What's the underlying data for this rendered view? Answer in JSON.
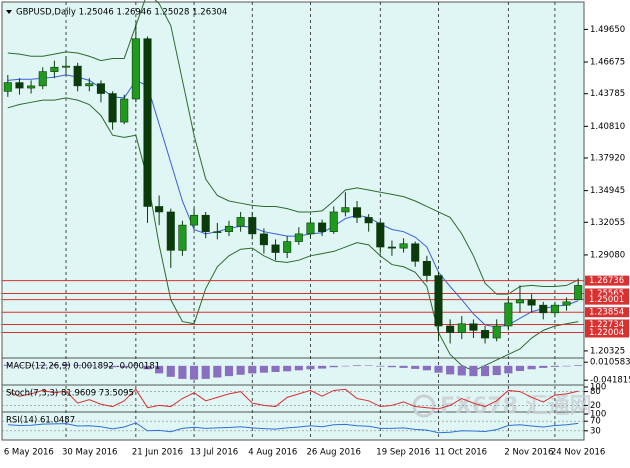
{
  "chart_data": {
    "type": "candlestick",
    "title": "GBPUSD,Daily  1.25046 1.26946 1.25028 1.26304",
    "categories": [
      "6 May 2016",
      null,
      null,
      null,
      null,
      "30 May 2016",
      null,
      null,
      null,
      null,
      null,
      "21 Jun 2016",
      null,
      null,
      null,
      null,
      "13 Jul 2016",
      null,
      null,
      null,
      null,
      "4 Aug 2016",
      null,
      null,
      null,
      null,
      "26 Aug 2016",
      null,
      null,
      null,
      null,
      null,
      "19 Sep 2016",
      null,
      null,
      null,
      null,
      "11 Oct 2016",
      null,
      null,
      null,
      null,
      null,
      "2 Nov 2016",
      null,
      null,
      null,
      "24 Nov 2016",
      null,
      null
    ],
    "open": [
      1.44,
      1.448,
      1.443,
      1.445,
      1.458,
      1.462,
      1.463,
      1.445,
      1.447,
      1.438,
      1.412,
      1.433,
      1.488,
      1.335,
      1.33,
      1.295,
      1.318,
      1.327,
      1.312,
      1.312,
      1.317,
      1.325,
      1.31,
      1.3,
      1.293,
      1.303,
      1.31,
      1.32,
      1.312,
      1.33,
      1.334,
      1.325,
      1.32,
      1.298,
      1.297,
      1.301,
      1.285,
      1.272,
      1.226,
      1.22,
      1.228,
      1.222,
      1.215,
      1.226,
      1.247,
      1.25,
      1.245,
      1.238,
      1.245,
      1.25
    ],
    "high": [
      1.455,
      1.452,
      1.45,
      1.462,
      1.468,
      1.472,
      1.466,
      1.452,
      1.45,
      1.44,
      1.437,
      1.502,
      1.49,
      1.345,
      1.333,
      1.322,
      1.334,
      1.33,
      1.32,
      1.322,
      1.33,
      1.33,
      1.315,
      1.305,
      1.308,
      1.316,
      1.325,
      1.323,
      1.335,
      1.348,
      1.34,
      1.328,
      1.322,
      1.304,
      1.306,
      1.303,
      1.29,
      1.275,
      1.232,
      1.235,
      1.232,
      1.226,
      1.232,
      1.252,
      1.263,
      1.255,
      1.248,
      1.248,
      1.252,
      1.2695
    ],
    "low": [
      1.435,
      1.437,
      1.438,
      1.442,
      1.452,
      1.455,
      1.44,
      1.44,
      1.43,
      1.405,
      1.41,
      1.43,
      1.32,
      1.318,
      1.279,
      1.29,
      1.315,
      1.306,
      1.305,
      1.308,
      1.312,
      1.305,
      1.292,
      1.286,
      1.288,
      1.3,
      1.306,
      1.308,
      1.31,
      1.326,
      1.32,
      1.312,
      1.292,
      1.29,
      1.293,
      1.28,
      1.266,
      1.212,
      1.21,
      1.214,
      1.215,
      1.21,
      1.212,
      1.222,
      1.238,
      1.238,
      1.232,
      1.234,
      1.24,
      1.2503
    ],
    "close": [
      1.448,
      1.443,
      1.445,
      1.458,
      1.462,
      1.463,
      1.445,
      1.447,
      1.438,
      1.412,
      1.433,
      1.488,
      1.335,
      1.33,
      1.295,
      1.318,
      1.327,
      1.312,
      1.312,
      1.317,
      1.325,
      1.31,
      1.3,
      1.293,
      1.303,
      1.31,
      1.32,
      1.312,
      1.33,
      1.334,
      1.325,
      1.32,
      1.298,
      1.297,
      1.301,
      1.285,
      1.272,
      1.226,
      1.22,
      1.228,
      1.222,
      1.215,
      1.226,
      1.247,
      1.25,
      1.245,
      1.238,
      1.245,
      1.248,
      1.263
    ],
    "up_color": "#1f9a1f",
    "down_color": "#0b3b0b",
    "ylim": [
      1.1977,
      1.5215
    ],
    "yticks": [
      {
        "value": 1.4965,
        "label": "1.49650"
      },
      {
        "value": 1.46675,
        "label": "1.46675"
      },
      {
        "value": 1.43785,
        "label": "1.43785"
      },
      {
        "value": 1.4081,
        "label": "1.40810"
      },
      {
        "value": 1.3792,
        "label": "1.37920"
      },
      {
        "value": 1.34945,
        "label": "1.34945"
      },
      {
        "value": 1.32055,
        "label": "1.32055"
      },
      {
        "value": 1.2908,
        "label": "1.29080"
      },
      {
        "value": 1.20325,
        "label": "1.20325"
      }
    ],
    "bands": [
      {
        "color": "#2e6b2e",
        "values": [
          1.475,
          1.474,
          1.472,
          1.472,
          1.474,
          1.476,
          1.475,
          1.472,
          1.468,
          1.47,
          1.47,
          1.5,
          1.53,
          1.52,
          1.5,
          1.45,
          1.4,
          1.36,
          1.345,
          1.34,
          1.338,
          1.336,
          1.335,
          1.335,
          1.333,
          1.33,
          1.33,
          1.331,
          1.34,
          1.35,
          1.352,
          1.35,
          1.348,
          1.346,
          1.344,
          1.34,
          1.335,
          1.33,
          1.325,
          1.31,
          1.29,
          1.265,
          1.255,
          1.255,
          1.262,
          1.263,
          1.262,
          1.262,
          1.263,
          1.268
        ]
      },
      {
        "color": "#2e6b2e",
        "values": [
          1.425,
          1.428,
          1.43,
          1.432,
          1.432,
          1.434,
          1.432,
          1.428,
          1.418,
          1.4,
          1.398,
          1.4,
          1.36,
          1.3,
          1.25,
          1.23,
          1.228,
          1.26,
          1.28,
          1.29,
          1.296,
          1.297,
          1.29,
          1.285,
          1.284,
          1.286,
          1.29,
          1.292,
          1.294,
          1.298,
          1.302,
          1.3,
          1.29,
          1.282,
          1.28,
          1.275,
          1.262,
          1.22,
          1.2,
          1.19,
          1.185,
          1.19,
          1.195,
          1.2,
          1.205,
          1.215,
          1.222,
          1.226,
          1.228,
          1.23
        ]
      },
      {
        "color": "#3b5fd9",
        "values": [
          1.45,
          1.451,
          1.451,
          1.452,
          1.453,
          1.455,
          1.453,
          1.45,
          1.443,
          1.435,
          1.434,
          1.45,
          1.445,
          1.41,
          1.375,
          1.34,
          1.314,
          1.31,
          1.312,
          1.315,
          1.317,
          1.316,
          1.312,
          1.31,
          1.308,
          1.308,
          1.31,
          1.311,
          1.317,
          1.324,
          1.327,
          1.325,
          1.319,
          1.314,
          1.312,
          1.307,
          1.298,
          1.275,
          1.262,
          1.25,
          1.237,
          1.227,
          1.225,
          1.227,
          1.233,
          1.239,
          1.242,
          1.244,
          1.245,
          1.249
        ]
      }
    ],
    "levels": [
      {
        "value": 1.26736,
        "label": "1.26736"
      },
      {
        "value": 1.25565,
        "label": "1.25565"
      },
      {
        "value": 1.25001,
        "label": "1.25001"
      },
      {
        "value": 1.23854,
        "label": "1.23854"
      },
      {
        "value": 1.22734,
        "label": "1.22734"
      },
      {
        "value": 1.22004,
        "label": "1.22004"
      }
    ],
    "level_color": "#d93030",
    "indicators": [
      {
        "type": "bar",
        "title": "MACD(12,26,9) 0.001892 -0.000181",
        "color": "#8a6fc0",
        "ylim": [
          -0.05,
          0.017
        ],
        "yticks": [
          0.010583,
          -0.041815
        ],
        "values": [
          0.003,
          0.002,
          0.002,
          0.003,
          0.004,
          0.005,
          0.003,
          0.002,
          0.0,
          -0.004,
          -0.005,
          0.002,
          -0.01,
          -0.022,
          -0.032,
          -0.038,
          -0.04,
          -0.038,
          -0.034,
          -0.03,
          -0.026,
          -0.022,
          -0.02,
          -0.018,
          -0.016,
          -0.013,
          -0.01,
          -0.008,
          -0.004,
          0.0,
          0.002,
          0.001,
          -0.002,
          -0.004,
          -0.006,
          -0.009,
          -0.013,
          -0.02,
          -0.025,
          -0.028,
          -0.03,
          -0.03,
          -0.027,
          -0.022,
          -0.015,
          -0.01,
          -0.006,
          -0.003,
          -0.001,
          0.002
        ]
      },
      {
        "type": "line",
        "title": "Stoch(7,3,3) 81.9609 73.5095",
        "color": "#d93030",
        "ylim": [
          0,
          100
        ],
        "yticks": [
          100,
          80,
          20
        ],
        "values": [
          80,
          60,
          70,
          85,
          75,
          82,
          30,
          45,
          25,
          15,
          40,
          90,
          10,
          20,
          15,
          50,
          75,
          40,
          55,
          70,
          80,
          30,
          20,
          15,
          55,
          70,
          85,
          60,
          85,
          90,
          50,
          40,
          15,
          20,
          35,
          15,
          10,
          5,
          20,
          50,
          30,
          15,
          40,
          85,
          80,
          55,
          35,
          65,
          70,
          82
        ]
      },
      {
        "type": "line",
        "title": "RSI(14) 61.0487",
        "color": "#2f6fd6",
        "ylim": [
          0,
          100
        ],
        "yticks": [
          100,
          70,
          30
        ],
        "values": [
          55,
          52,
          53,
          58,
          59,
          60,
          50,
          51,
          47,
          38,
          46,
          63,
          30,
          32,
          26,
          40,
          45,
          40,
          42,
          44,
          47,
          42,
          39,
          37,
          42,
          46,
          51,
          47,
          55,
          57,
          51,
          49,
          40,
          40,
          42,
          36,
          33,
          22,
          24,
          30,
          29,
          27,
          35,
          52,
          55,
          50,
          46,
          52,
          55,
          61
        ]
      }
    ],
    "watermark": "FX678 汇通网"
  }
}
